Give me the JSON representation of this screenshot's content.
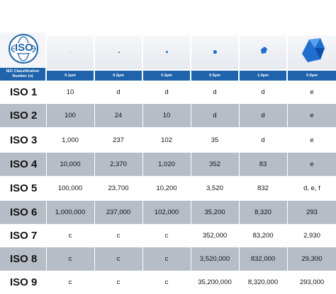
{
  "header": {
    "classification_label": "ISO Classification Number (n)",
    "logo_text": "ISO",
    "sizes": [
      "0.1µm",
      "0.2µm",
      "0.3µm",
      "0.5µm",
      "1.0µm",
      "5.0µm"
    ]
  },
  "rows": [
    {
      "class": "ISO 1",
      "values": [
        "10",
        "d",
        "d",
        "d",
        "d",
        "e"
      ]
    },
    {
      "class": "ISO 2",
      "values": [
        "100",
        "24",
        "10",
        "d",
        "d",
        "e"
      ]
    },
    {
      "class": "ISO 3",
      "values": [
        "1,000",
        "237",
        "102",
        "35",
        "d",
        "e"
      ]
    },
    {
      "class": "ISO 4",
      "values": [
        "10,000",
        "2,370",
        "1,020",
        "352",
        "83",
        "e"
      ]
    },
    {
      "class": "ISO 5",
      "values": [
        "100,000",
        "23,700",
        "10,200",
        "3,520",
        "832",
        "d, e, f"
      ]
    },
    {
      "class": "ISO 6",
      "values": [
        "1,000,000",
        "237,000",
        "102,000",
        "35,200",
        "8,320",
        "293"
      ]
    },
    {
      "class": "ISO 7",
      "values": [
        "c",
        "c",
        "c",
        "352,000",
        "83,200",
        "2,930"
      ]
    },
    {
      "class": "ISO 8",
      "values": [
        "c",
        "c",
        "c",
        "3,520,000",
        "832,000",
        "29,300"
      ]
    },
    {
      "class": "ISO 9",
      "values": [
        "c",
        "c",
        "c",
        "35,200,000",
        "8,320,000",
        "293,000"
      ]
    }
  ],
  "colors": {
    "header_bar": "#1e63ab",
    "shaded_row": "#b7bdc6",
    "particle": "#1f6fd0"
  }
}
